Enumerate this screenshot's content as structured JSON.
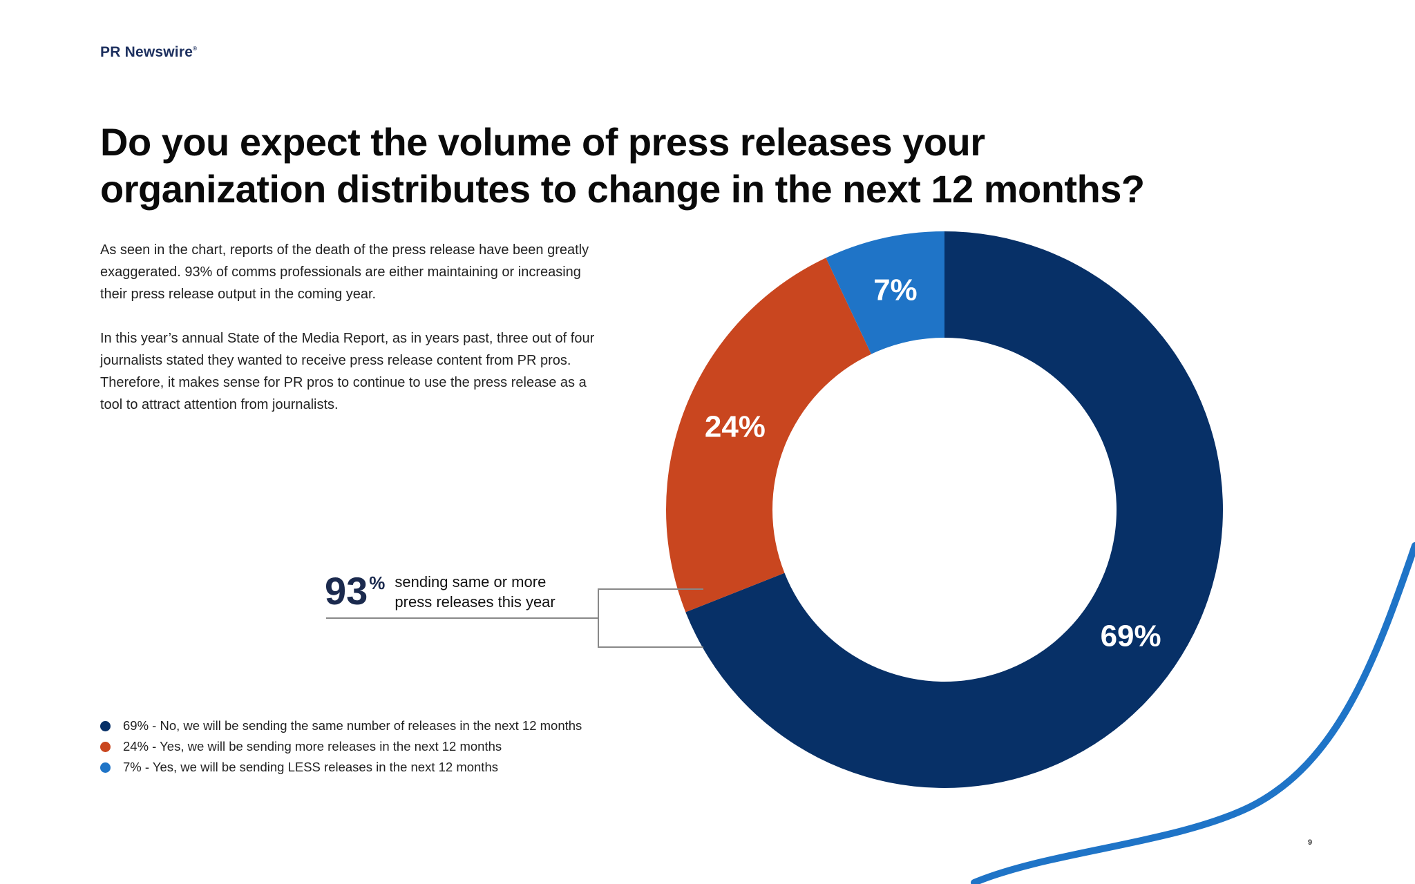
{
  "brand": {
    "name": "PR Newswire",
    "mark": "®"
  },
  "title": "Do you expect the volume of press releases your organization distributes to change in the next 12 months?",
  "paragraphs": [
    "As seen in the chart, reports of the death of the press release have been greatly exaggerated. 93% of comms professionals are either maintaining or increasing their press release output in the coming year.",
    "In this year’s annual State of the Media Report, as in years past, three out of four journalists stated they wanted to receive press release content from PR pros. Therefore, it makes sense for PR pros to continue to use the press release as a tool to attract attention from journalists."
  ],
  "callout": {
    "number": "93",
    "unit": "%",
    "text": "sending same or more press releases this year"
  },
  "chart_data": {
    "type": "pie",
    "categories": [
      "No, we will be sending the same number of releases in the next 12 months",
      "Yes, we will be sending more releases in the next 12 months",
      "Yes, we will be sending LESS releases in the next 12 months"
    ],
    "values": [
      69,
      24,
      7
    ],
    "data_labels": [
      "69%",
      "24%",
      "7%"
    ],
    "colors": [
      "#073067",
      "#c9461f",
      "#1f74c7"
    ],
    "donut": true,
    "legend_entries": [
      "69% - No, we will be sending the same number of releases in the next 12 months",
      "24% - Yes, we will be sending more releases in the next 12 months",
      "7% - Yes, we will be sending LESS releases in the next 12 months"
    ],
    "legend_position": "bottom-left"
  },
  "decor": {
    "accent_color": "#1f74c7"
  },
  "page_number": "9"
}
